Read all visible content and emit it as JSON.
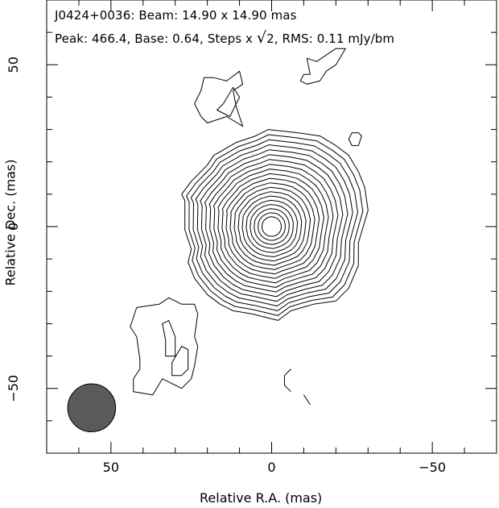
{
  "chart_data": {
    "type": "contour",
    "header": {
      "line1": "J0424+0036: Beam: 14.90 x 14.90 mas",
      "peak_label": "Peak: 466.4, Base: 0.64, Steps x ",
      "sqrt_symbol": "√",
      "step_value": "2",
      "rms_label": ", RMS: 0.11 mJy/bm"
    },
    "xlabel": "Relative R.A. (mas)",
    "ylabel": "Relative Dec. (mas)",
    "xlim": [
      70,
      -70
    ],
    "ylim": [
      -70,
      70
    ],
    "x_ticks": [
      {
        "value": 50,
        "label": "50"
      },
      {
        "value": 0,
        "label": "0"
      },
      {
        "value": -50,
        "label": "−50"
      }
    ],
    "y_ticks": [
      {
        "value": 50,
        "label": "50"
      },
      {
        "value": 0,
        "label": "0"
      },
      {
        "value": -50,
        "label": "−50"
      }
    ],
    "peak_mJy_per_beam": 466.4,
    "base_mJy_per_beam": 0.64,
    "step_factor": "sqrt(2)",
    "rms_mJy_per_beam": 0.11,
    "beam": {
      "major_mas": 14.9,
      "minor_mas": 14.9,
      "center": [
        56,
        -56
      ],
      "fill": "#5a5a5a"
    },
    "core": {
      "center": [
        0,
        0
      ],
      "contour_count": 19
    },
    "components": [
      {
        "name": "core-outer",
        "points": [
          [
            25,
            -7
          ],
          [
            27,
            -1
          ],
          [
            27,
            8
          ],
          [
            28,
            10
          ],
          [
            25,
            14
          ],
          [
            20,
            19
          ],
          [
            18,
            22
          ],
          [
            11,
            26
          ],
          [
            5,
            28
          ],
          [
            1,
            30
          ],
          [
            -8,
            29
          ],
          [
            -15,
            28
          ],
          [
            -20,
            25
          ],
          [
            -24,
            22
          ],
          [
            -27,
            17
          ],
          [
            -29,
            12
          ],
          [
            -30,
            5
          ],
          [
            -27,
            -5
          ],
          [
            -27,
            -12
          ],
          [
            -24,
            -19
          ],
          [
            -20,
            -23
          ],
          [
            -13,
            -24
          ],
          [
            -6,
            -26
          ],
          [
            -2,
            -29
          ],
          [
            6,
            -27
          ],
          [
            12,
            -26
          ],
          [
            16,
            -24
          ],
          [
            20,
            -21
          ],
          [
            24,
            -16
          ],
          [
            26,
            -11
          ],
          [
            25,
            -7
          ]
        ]
      },
      {
        "name": "upper-left-blob-outer",
        "points": [
          [
            21,
            46
          ],
          [
            18,
            46
          ],
          [
            14,
            45
          ],
          [
            10,
            48
          ],
          [
            9,
            44
          ],
          [
            12,
            42
          ],
          [
            11,
            37
          ],
          [
            9,
            31
          ],
          [
            14,
            34
          ],
          [
            20,
            32
          ],
          [
            22,
            34
          ],
          [
            24,
            38
          ],
          [
            22,
            42
          ],
          [
            21,
            46
          ]
        ]
      },
      {
        "name": "upper-left-blob-inner",
        "points": [
          [
            15,
            38
          ],
          [
            12,
            43
          ],
          [
            10,
            40
          ],
          [
            13,
            34
          ],
          [
            17,
            36
          ],
          [
            15,
            38
          ]
        ]
      },
      {
        "name": "upper-right-blob",
        "points": [
          [
            -23,
            55
          ],
          [
            -20,
            55
          ],
          [
            -17,
            53
          ],
          [
            -14,
            51
          ],
          [
            -11,
            52
          ],
          [
            -12,
            47
          ],
          [
            -10,
            47
          ],
          [
            -9,
            45
          ],
          [
            -11,
            44
          ],
          [
            -15,
            45
          ],
          [
            -17,
            48
          ],
          [
            -20,
            50
          ],
          [
            -23,
            55
          ]
        ]
      },
      {
        "name": "right-small-blob",
        "points": [
          [
            -27,
            29
          ],
          [
            -25,
            29
          ],
          [
            -24,
            27
          ],
          [
            -25,
            25
          ],
          [
            -27,
            25
          ],
          [
            -28,
            28
          ],
          [
            -27,
            29
          ]
        ]
      },
      {
        "name": "lower-left-blob-outer",
        "points": [
          [
            42,
            -25
          ],
          [
            35,
            -24
          ],
          [
            32,
            -22
          ],
          [
            28,
            -24
          ],
          [
            24,
            -24
          ],
          [
            23,
            -27
          ],
          [
            24,
            -34
          ],
          [
            23,
            -37
          ],
          [
            24,
            -43
          ],
          [
            25,
            -47
          ],
          [
            28,
            -50
          ],
          [
            34,
            -47
          ],
          [
            37,
            -52
          ],
          [
            43,
            -51
          ],
          [
            43,
            -47
          ],
          [
            41,
            -44
          ],
          [
            41,
            -41
          ],
          [
            42,
            -34
          ],
          [
            44,
            -31
          ],
          [
            42,
            -25
          ]
        ]
      },
      {
        "name": "lower-left-blob-inner-1",
        "points": [
          [
            32,
            -29
          ],
          [
            34,
            -30
          ],
          [
            33,
            -35
          ],
          [
            33,
            -40
          ],
          [
            30,
            -40
          ],
          [
            30,
            -34
          ],
          [
            32,
            -29
          ]
        ]
      },
      {
        "name": "lower-left-blob-inner-2",
        "points": [
          [
            28,
            -37
          ],
          [
            26,
            -38
          ],
          [
            26,
            -44
          ],
          [
            28,
            -46
          ],
          [
            31,
            -46
          ],
          [
            31,
            -42
          ],
          [
            28,
            -37
          ]
        ]
      },
      {
        "name": "lower-right-speck-1",
        "points": [
          [
            -6,
            -44
          ],
          [
            -4,
            -46
          ],
          [
            -4,
            -49
          ],
          [
            -6,
            -51
          ]
        ]
      },
      {
        "name": "lower-right-speck-2",
        "points": [
          [
            -10,
            -52
          ],
          [
            -12,
            -55
          ]
        ]
      }
    ]
  }
}
